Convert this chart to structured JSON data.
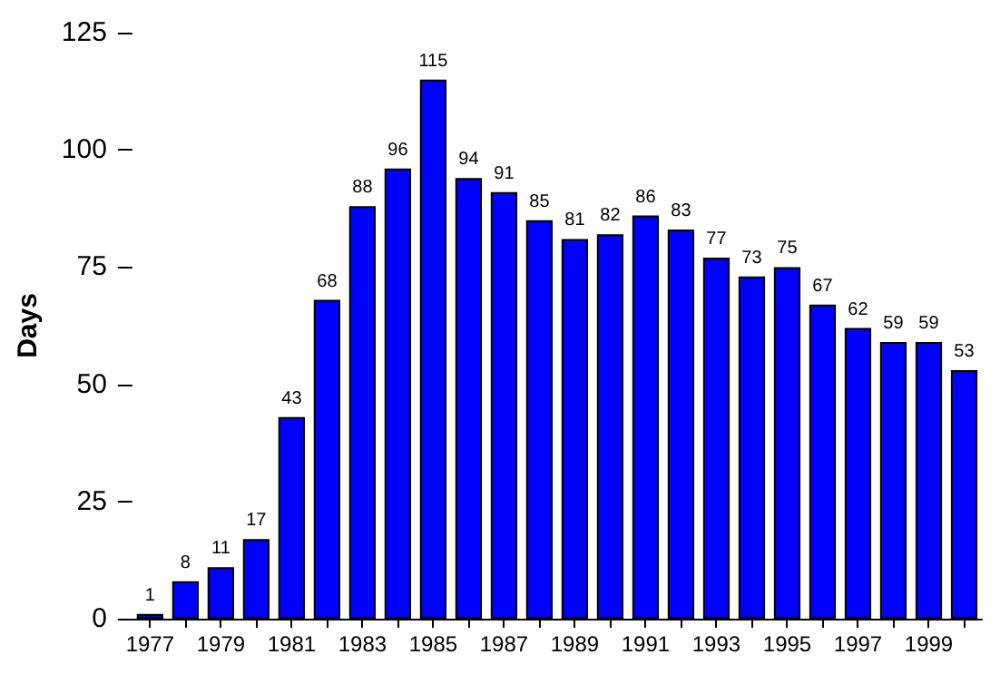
{
  "chart_data": {
    "type": "bar",
    "ylabel": "Days",
    "categories": [
      "1977",
      null,
      "1979",
      null,
      "1981",
      null,
      "1983",
      null,
      "1985",
      null,
      "1987",
      null,
      "1989",
      null,
      "1991",
      null,
      "1993",
      null,
      "1995",
      null,
      "1997",
      null,
      "1999",
      null
    ],
    "values": [
      1,
      8,
      11,
      17,
      43,
      68,
      88,
      96,
      115,
      94,
      91,
      85,
      81,
      82,
      86,
      83,
      77,
      73,
      75,
      67,
      62,
      59,
      59,
      53
    ],
    "color": "#0000ff",
    "ylim": [
      0,
      125
    ],
    "yticks": [
      0,
      25,
      50,
      75,
      100,
      125
    ],
    "grid": false,
    "data_labels": true
  }
}
